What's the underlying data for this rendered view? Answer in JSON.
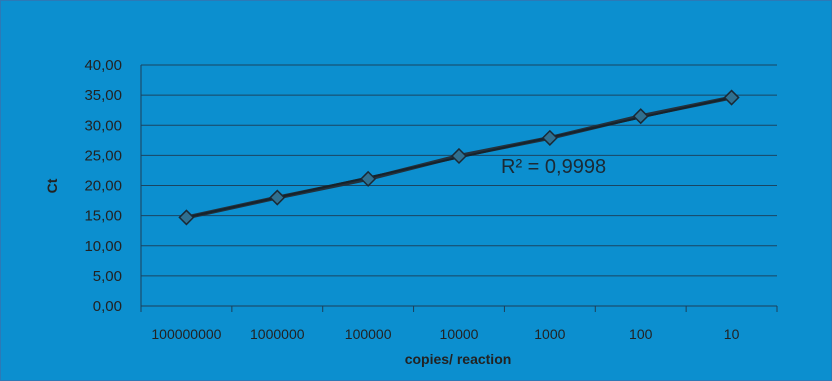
{
  "chart_data": {
    "type": "scatter",
    "title": "",
    "xlabel": "copies/ reaction",
    "ylabel": "Ct",
    "categories": [
      "100000000",
      "1000000",
      "100000",
      "10000",
      "1000",
      "100",
      "10"
    ],
    "y_tick_labels": [
      "0,00",
      "5,00",
      "10,00",
      "15,00",
      "20,00",
      "25,00",
      "30,00",
      "35,00",
      "40,00"
    ],
    "ylim": [
      0,
      40
    ],
    "series": [
      {
        "values": [
          14.7,
          18.0,
          21.1,
          24.9,
          27.9,
          31.5,
          34.6
        ]
      }
    ],
    "annotation": "R² = 0,9998",
    "grid": true,
    "legend": "none"
  },
  "colors": {
    "background": "#0c8fcf",
    "gridline": "#1b3f59",
    "line": "#23313d",
    "marker": "#2f6f8f",
    "text": "#222222"
  }
}
